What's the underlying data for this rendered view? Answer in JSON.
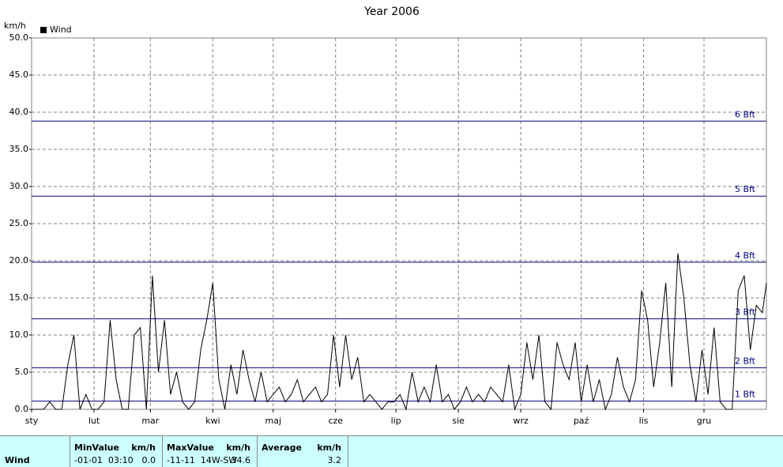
{
  "chart_data": {
    "type": "line",
    "title": "Year 2006",
    "y_label": "km/h",
    "x": [
      1,
      4,
      7,
      10,
      13,
      16,
      19,
      22,
      25,
      28,
      31,
      34,
      37,
      40,
      43,
      46,
      49,
      52,
      55,
      58,
      61,
      64,
      67,
      70,
      73,
      76,
      79,
      82,
      85,
      88,
      91,
      94,
      97,
      100,
      103,
      106,
      109,
      112,
      115,
      118,
      121,
      124,
      127,
      130,
      133,
      136,
      139,
      142,
      145,
      148,
      151,
      154,
      157,
      160,
      163,
      166,
      169,
      172,
      175,
      178,
      181,
      184,
      187,
      190,
      193,
      196,
      199,
      202,
      205,
      208,
      211,
      214,
      217,
      220,
      223,
      226,
      229,
      232,
      235,
      238,
      241,
      244,
      247,
      250,
      253,
      256,
      259,
      262,
      265,
      268,
      271,
      274,
      277,
      280,
      283,
      286,
      289,
      292,
      295,
      298,
      301,
      304,
      307,
      310,
      313,
      316,
      319,
      322,
      325,
      328,
      331,
      334,
      337,
      340,
      343,
      346,
      349,
      352,
      355,
      358,
      361,
      364,
      366
    ],
    "series": [
      {
        "name": "Wind",
        "color": "#000000",
        "values": [
          0,
          0,
          0,
          1,
          0,
          0,
          6,
          10,
          0,
          2,
          0,
          0,
          1,
          12,
          4,
          0,
          0,
          10,
          11,
          0,
          18,
          5,
          12,
          2,
          5,
          1,
          0,
          1,
          8,
          12,
          17,
          4,
          0,
          6,
          2,
          8,
          4,
          1,
          5,
          1,
          2,
          3,
          1,
          2,
          4,
          1,
          2,
          3,
          1,
          2,
          10,
          3,
          10,
          4,
          7,
          1,
          2,
          1,
          0,
          1,
          1,
          2,
          0,
          5,
          1,
          3,
          1,
          6,
          1,
          2,
          0,
          1,
          3,
          1,
          2,
          1,
          3,
          2,
          1,
          6,
          0,
          2,
          9,
          4,
          10,
          1,
          0,
          9,
          6,
          4,
          9,
          1,
          6,
          1,
          4,
          0,
          2,
          7,
          3,
          1,
          4,
          16,
          12,
          3,
          9,
          17,
          3,
          21,
          15,
          6,
          1,
          8,
          2,
          11,
          1,
          0,
          0,
          16,
          18,
          8,
          14,
          13,
          17
        ]
      }
    ],
    "xlim": [
      1,
      366
    ],
    "xticks": [
      {
        "value": 1,
        "label": "sty"
      },
      {
        "value": 32,
        "label": "lut"
      },
      {
        "value": 60,
        "label": "mar"
      },
      {
        "value": 91,
        "label": "kwi"
      },
      {
        "value": 121,
        "label": "maj"
      },
      {
        "value": 152,
        "label": "cze"
      },
      {
        "value": 182,
        "label": "lip"
      },
      {
        "value": 213,
        "label": "sie"
      },
      {
        "value": 244,
        "label": "wrz"
      },
      {
        "value": 274,
        "label": "paź"
      },
      {
        "value": 305,
        "label": "lis"
      },
      {
        "value": 335,
        "label": "gru"
      }
    ],
    "ylim": [
      0,
      50
    ],
    "yticks": [
      {
        "value": 0,
        "label": "0.0"
      },
      {
        "value": 5,
        "label": "5.0"
      },
      {
        "value": 10,
        "label": "10.0"
      },
      {
        "value": 15,
        "label": "15.0"
      },
      {
        "value": 20,
        "label": "20.0"
      },
      {
        "value": 25,
        "label": "25.0"
      },
      {
        "value": 30,
        "label": "30.0"
      },
      {
        "value": 35,
        "label": "35.0"
      },
      {
        "value": 40,
        "label": "40.0"
      },
      {
        "value": 45,
        "label": "45.0"
      },
      {
        "value": 50,
        "label": "50.0"
      }
    ],
    "reference_lines": [
      {
        "value": 1.1,
        "label": "1 Bft"
      },
      {
        "value": 5.6,
        "label": "2 Bft"
      },
      {
        "value": 12.2,
        "label": "3 Bft"
      },
      {
        "value": 19.8,
        "label": "4 Bft"
      },
      {
        "value": 28.7,
        "label": "5 Bft"
      },
      {
        "value": 38.8,
        "label": "6 Bft"
      }
    ],
    "reference_color": "#000080",
    "grid": true,
    "legend": "top-left"
  },
  "stats_row": "Wind",
  "stats": [
    {
      "label": "MinValue",
      "unit": "km/h",
      "detail": "-01-01  03:10",
      "value": "0.0"
    },
    {
      "label": "MaxValue",
      "unit": "km/h",
      "detail": "-11-11  14W-SW",
      "value": "34.6"
    },
    {
      "label": "Average",
      "unit": "km/h",
      "value": "3.2"
    }
  ]
}
